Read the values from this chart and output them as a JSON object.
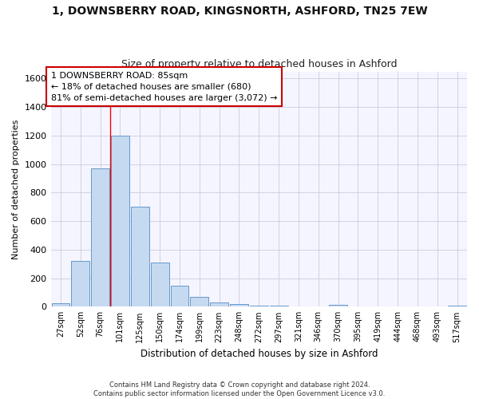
{
  "title": "1, DOWNSBERRY ROAD, KINGSNORTH, ASHFORD, TN25 7EW",
  "subtitle": "Size of property relative to detached houses in Ashford",
  "xlabel": "Distribution of detached houses by size in Ashford",
  "ylabel": "Number of detached properties",
  "categories": [
    "27sqm",
    "52sqm",
    "76sqm",
    "101sqm",
    "125sqm",
    "150sqm",
    "174sqm",
    "199sqm",
    "223sqm",
    "248sqm",
    "272sqm",
    "297sqm",
    "321sqm",
    "346sqm",
    "370sqm",
    "395sqm",
    "419sqm",
    "444sqm",
    "468sqm",
    "493sqm",
    "517sqm"
  ],
  "values": [
    25,
    320,
    970,
    1200,
    700,
    310,
    150,
    70,
    28,
    18,
    10,
    10,
    0,
    0,
    12,
    0,
    0,
    0,
    0,
    0,
    10
  ],
  "bar_color": "#c5d9f0",
  "bar_edge_color": "#6699cc",
  "grid_color": "#ccccdd",
  "background_color": "#ffffff",
  "plot_bg_color": "#f5f5ff",
  "red_line_index": 2,
  "annotation_line1": "1 DOWNSBERRY ROAD: 85sqm",
  "annotation_line2": "← 18% of detached houses are smaller (680)",
  "annotation_line3": "81% of semi-detached houses are larger (3,072) →",
  "annotation_box_facecolor": "#ffffff",
  "annotation_box_edgecolor": "#cc0000",
  "ylim": [
    0,
    1650
  ],
  "yticks": [
    0,
    200,
    400,
    600,
    800,
    1000,
    1200,
    1400,
    1600
  ],
  "footnote_line1": "Contains HM Land Registry data © Crown copyright and database right 2024.",
  "footnote_line2": "Contains public sector information licensed under the Open Government Licence v3.0."
}
